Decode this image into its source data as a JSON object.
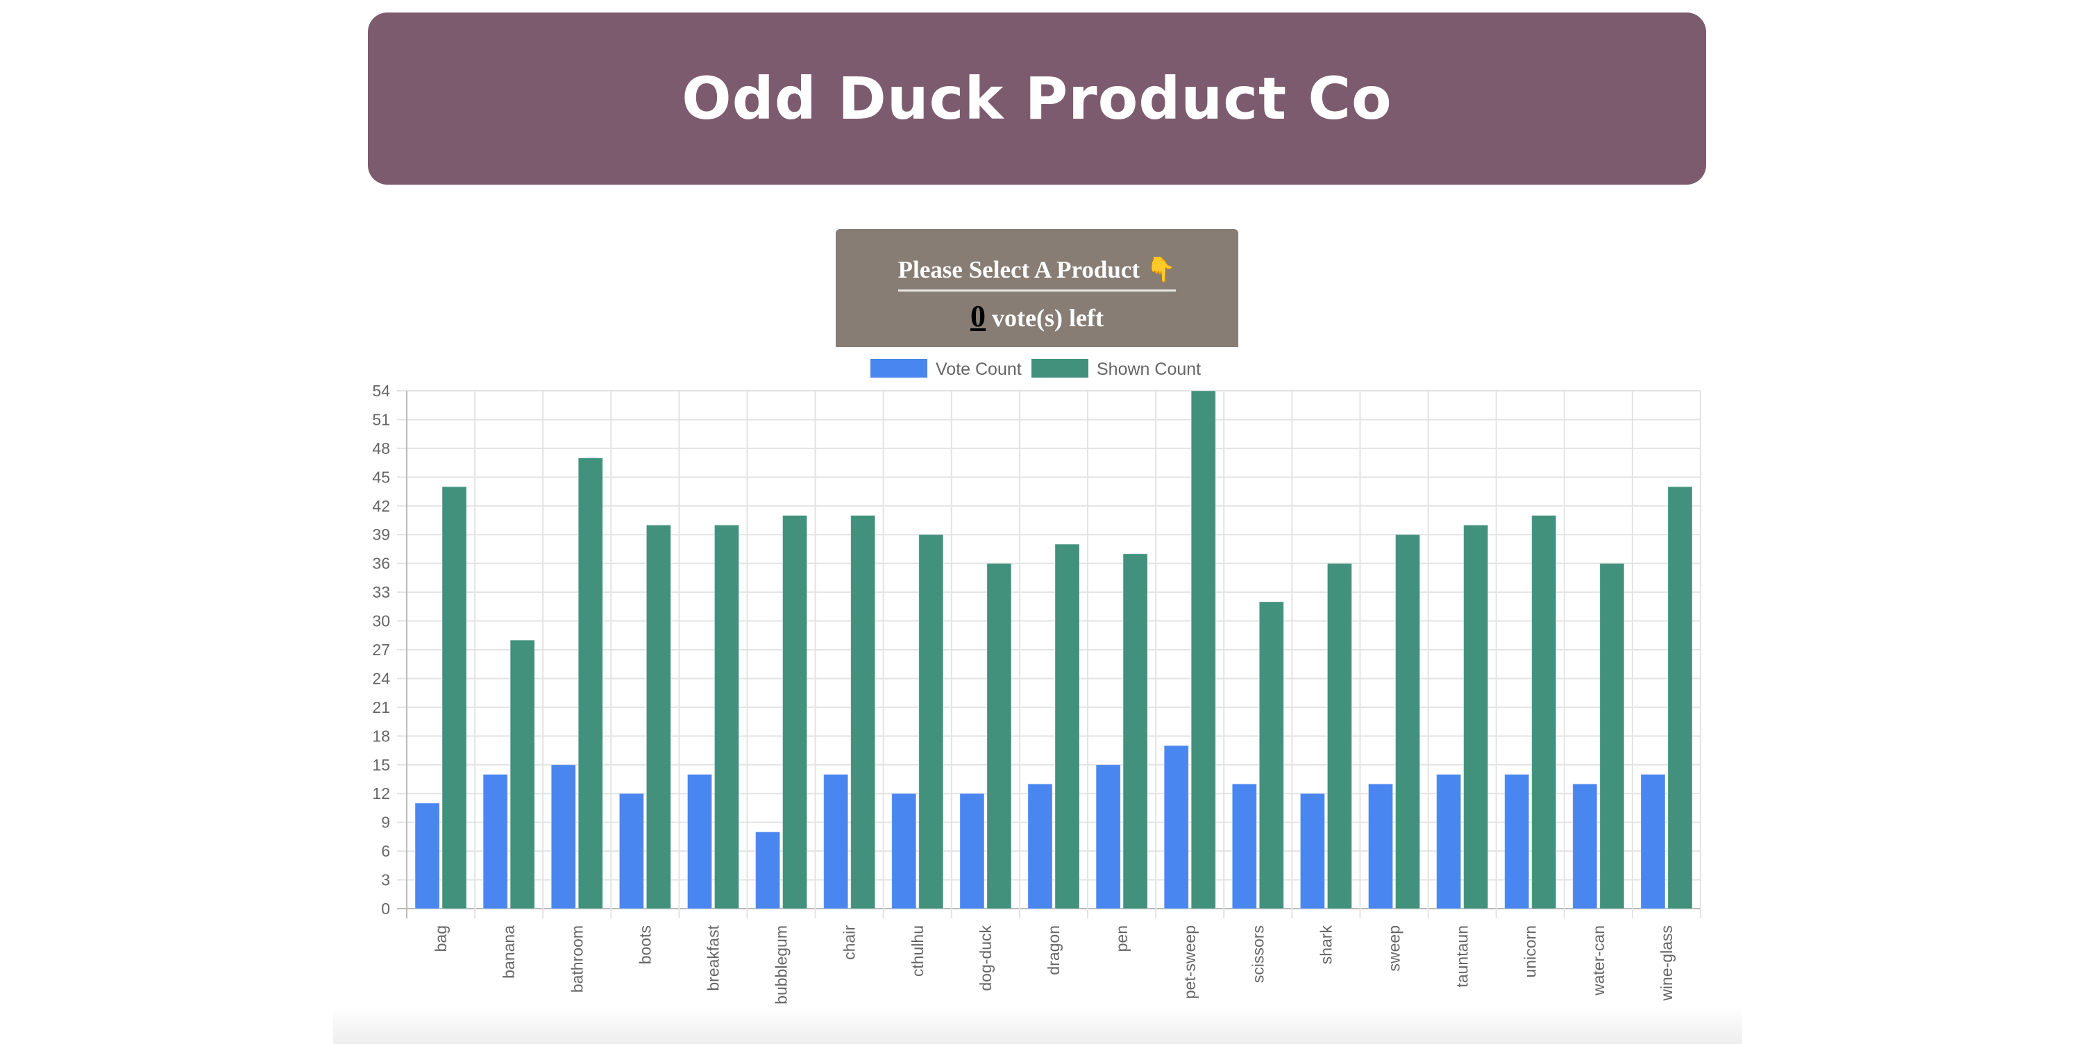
{
  "header": {
    "title": "Odd Duck Product Co"
  },
  "panel": {
    "prompt": "Please Select A Product",
    "prompt_emoji": "👇",
    "votes_left": "0",
    "votes_suffix": " vote(s) left"
  },
  "chart_data": {
    "type": "bar",
    "title": "",
    "xlabel": "",
    "ylabel": "",
    "ylim": [
      0,
      54
    ],
    "ytick_step": 3,
    "grid": true,
    "legend_position": "top-center",
    "categories": [
      "bag",
      "banana",
      "bathroom",
      "boots",
      "breakfast",
      "bubblegum",
      "chair",
      "cthulhu",
      "dog-duck",
      "dragon",
      "pen",
      "pet-sweep",
      "scissors",
      "shark",
      "sweep",
      "tauntaun",
      "unicorn",
      "water-can",
      "wine-glass"
    ],
    "series": [
      {
        "name": "Vote Count",
        "color": "#4a86f0",
        "values": [
          11,
          14,
          15,
          12,
          14,
          8,
          14,
          12,
          12,
          13,
          15,
          17,
          13,
          12,
          13,
          14,
          14,
          13,
          14
        ]
      },
      {
        "name": "Shown Count",
        "color": "#41917c",
        "values": [
          44,
          28,
          47,
          40,
          40,
          41,
          41,
          39,
          36,
          38,
          37,
          54,
          32,
          36,
          39,
          40,
          41,
          36,
          44
        ]
      }
    ]
  }
}
